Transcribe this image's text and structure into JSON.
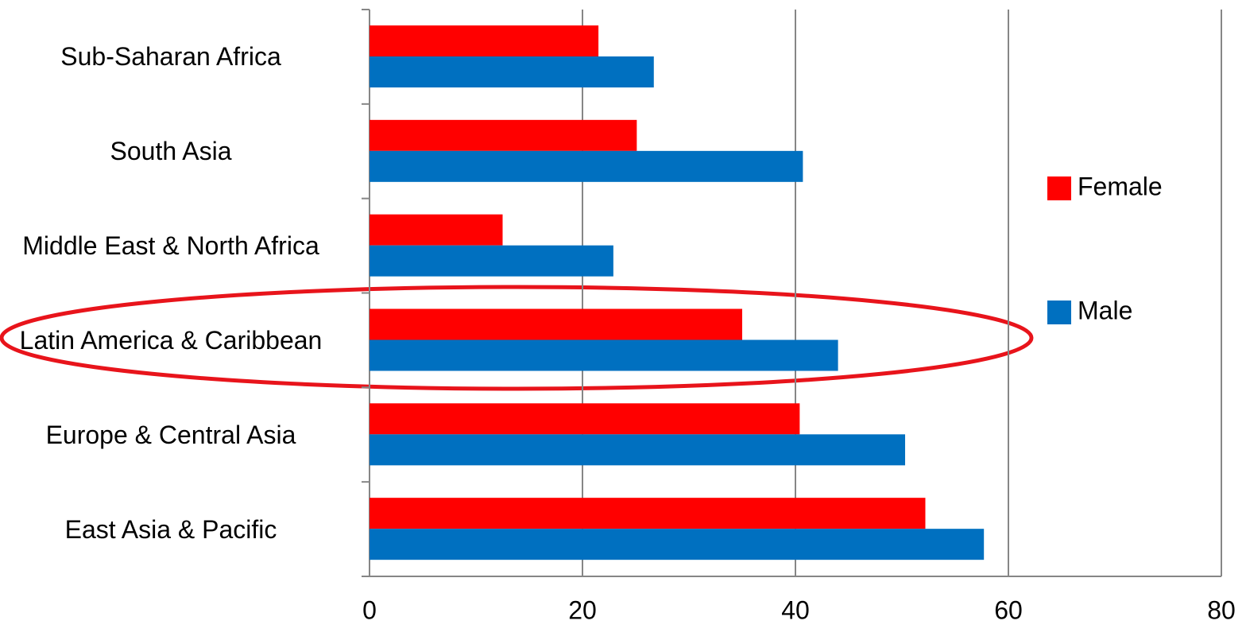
{
  "chart_data": {
    "type": "bar",
    "orientation": "horizontal",
    "categories": [
      "Sub-Saharan Africa",
      "South Asia",
      "Middle East & North Africa",
      "Latin America & Caribbean",
      "Europe & Central Asia",
      "East Asia & Pacific"
    ],
    "series": [
      {
        "name": "Female",
        "color": "#ff0000",
        "values": [
          21.5,
          25.1,
          12.5,
          35.0,
          40.4,
          52.2
        ]
      },
      {
        "name": "Male",
        "color": "#0070c0",
        "values": [
          26.7,
          40.7,
          22.9,
          44.0,
          50.3,
          57.7
        ]
      }
    ],
    "xlim": [
      0,
      80
    ],
    "xticks": [
      0,
      20,
      40,
      60,
      80
    ],
    "grid": true,
    "legend": "right"
  }
}
